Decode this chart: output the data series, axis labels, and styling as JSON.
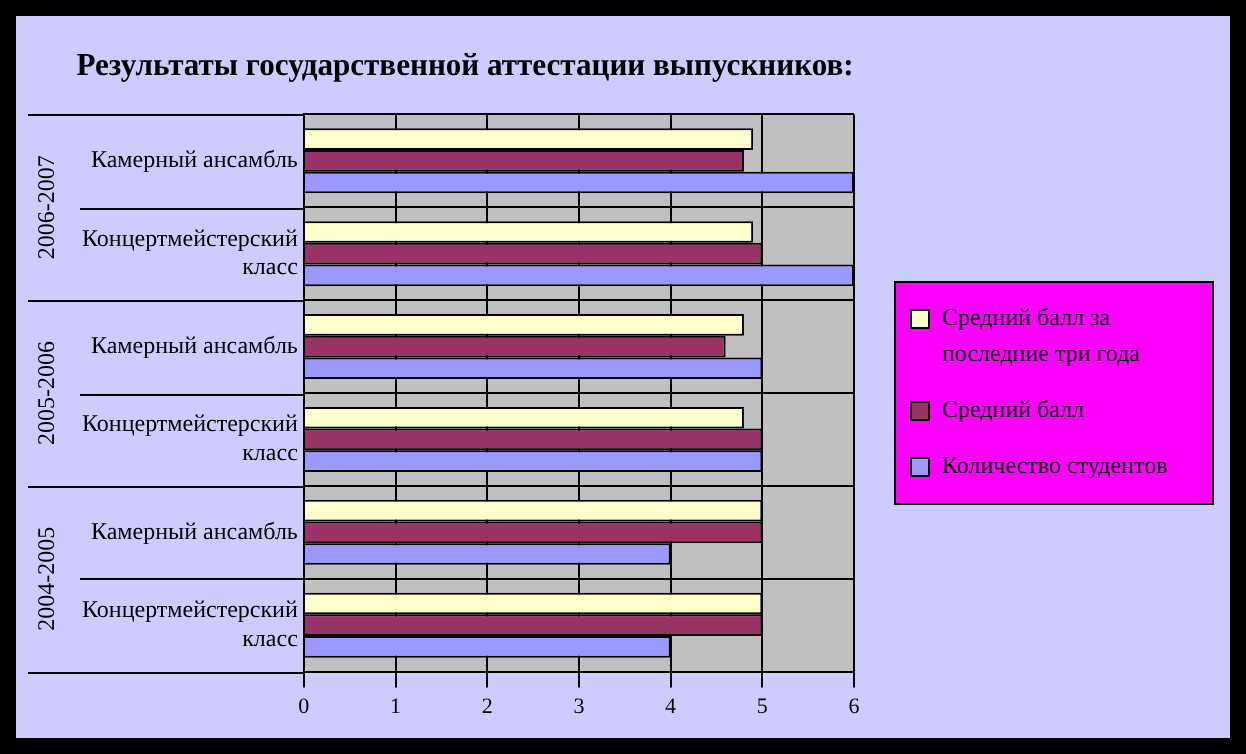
{
  "chart_data": {
    "type": "bar",
    "orientation": "horizontal",
    "title": "Результаты государственной аттестации выпускников:",
    "categories": [
      "Камерный ансамбль",
      "Концертмейстерский класс",
      "Камерный ансамбль",
      "Концертмейстерский класс",
      "Камерный ансамбль",
      "Концертмейстерский класс"
    ],
    "annotations": [
      "2006-2007",
      "2005-2006",
      "2004-2005"
    ],
    "series": [
      {
        "name": "Средний балл за последние три года",
        "color": "#ffffcc",
        "values": [
          4.9,
          4.9,
          4.8,
          4.8,
          5,
          5
        ]
      },
      {
        "name": "Средний балл",
        "color": "#993366",
        "values": [
          4.8,
          5,
          4.6,
          5,
          5,
          5
        ]
      },
      {
        "name": "Количество студентов",
        "color": "#9999ff",
        "values": [
          6,
          6,
          5,
          5,
          4,
          4
        ]
      }
    ],
    "xlim": [
      0,
      6
    ],
    "xticks": [
      0,
      1,
      2,
      3,
      4,
      5,
      6
    ],
    "grid": true,
    "legend": "right"
  }
}
